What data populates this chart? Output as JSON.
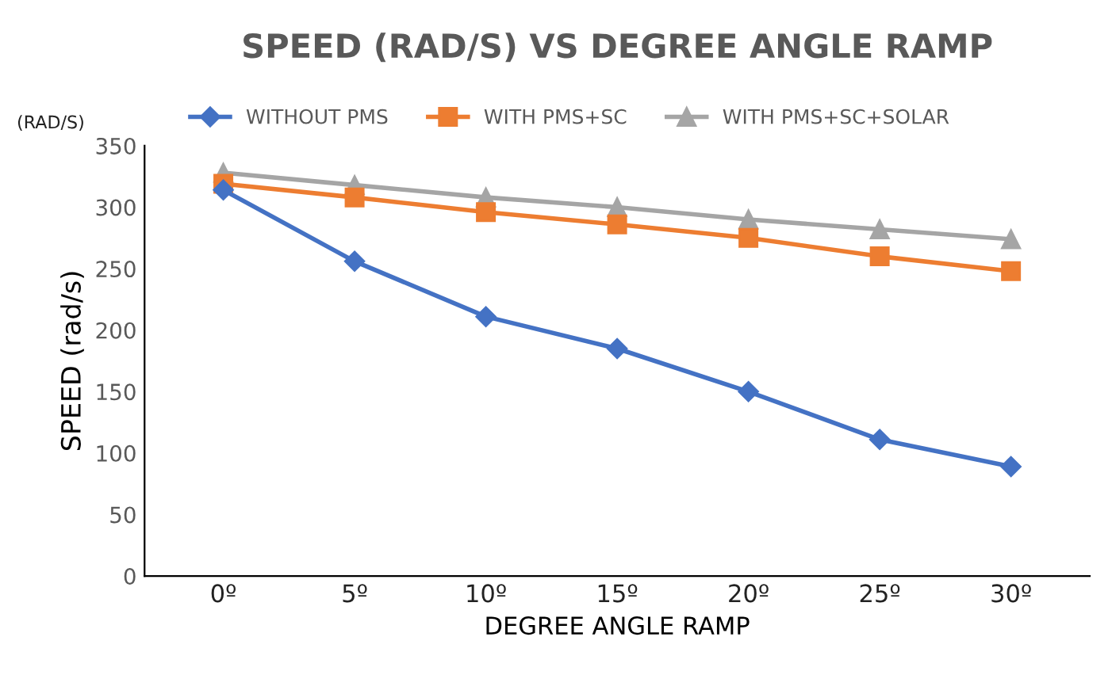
{
  "chart_data": {
    "type": "line",
    "title": "SPEED (RAD/S) VS DEGREE ANGLE RAMP",
    "xlabel": "DEGREE ANGLE RAMP",
    "ylabel": "SPEED (rad/s)",
    "annotations": [
      "(RAD/S)"
    ],
    "categories": [
      "0º",
      "5º",
      "10º",
      "15º",
      "20º",
      "25º",
      "30º"
    ],
    "series": [
      {
        "name": "WITHOUT PMS",
        "color": "#4472c4",
        "marker": "diamond",
        "values": [
          314,
          256,
          211,
          185,
          150,
          111,
          89
        ]
      },
      {
        "name": "WITH PMS+SC",
        "color": "#ed7d31",
        "marker": "square",
        "values": [
          319,
          308,
          296,
          286,
          275,
          260,
          248
        ]
      },
      {
        "name": "WITH PMS+SC+SOLAR",
        "color": "#a5a5a5",
        "marker": "triangle",
        "values": [
          328,
          318,
          308,
          300,
          290,
          282,
          274
        ]
      }
    ],
    "ylim": [
      0,
      350
    ],
    "yticks": [
      0,
      50,
      100,
      150,
      200,
      250,
      300,
      350
    ],
    "grid": false,
    "legend": "top",
    "line_style": "solid"
  }
}
